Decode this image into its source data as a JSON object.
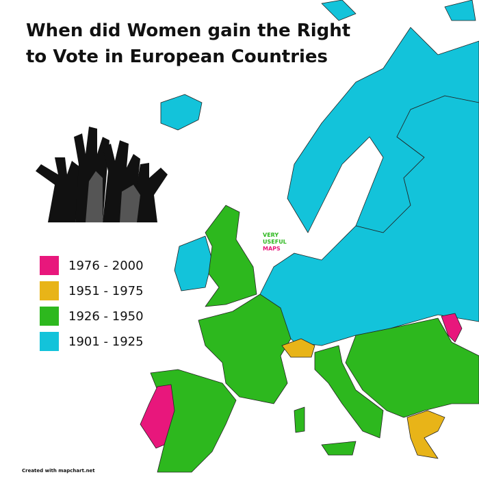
{
  "title": "When did Women gain the Right to Vote in European Countries",
  "legend": [
    {
      "label": "1976 - 2000",
      "color": "#e8177c"
    },
    {
      "label": "1951 - 1975",
      "color": "#e8b418"
    },
    {
      "label": "1926 - 1950",
      "color": "#2db81e"
    },
    {
      "label": "1901 - 1925",
      "color": "#13c3da"
    }
  ],
  "watermark": [
    "VERY",
    "USEFUL",
    "MAPS"
  ],
  "credit": "Created with mapchart.net"
}
